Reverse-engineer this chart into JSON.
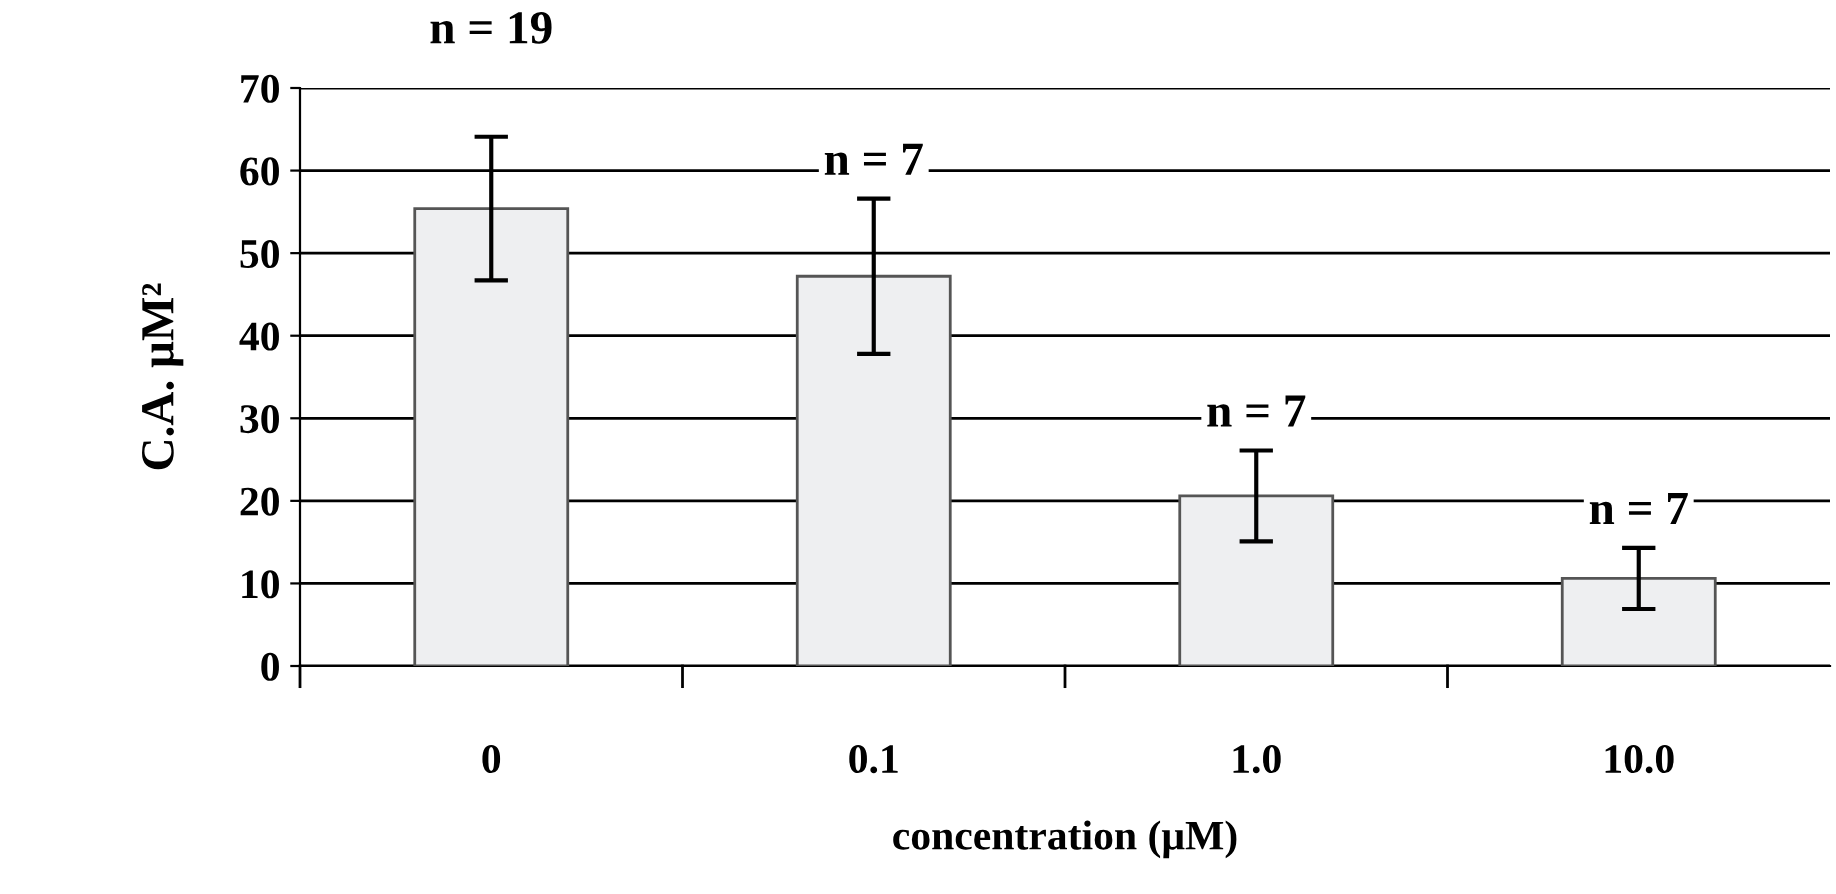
{
  "chart_data": {
    "type": "bar",
    "xlabel": "concentration (μM)",
    "ylabel": "C.A. μM²",
    "categories": [
      "0",
      "0.1",
      "1.0",
      "10.0"
    ],
    "values": [
      55.4,
      47.2,
      20.6,
      10.6
    ],
    "errors": [
      8.7,
      9.4,
      5.5,
      3.7
    ],
    "color": "#eeeff1",
    "ylim": [
      0,
      70
    ],
    "yticks": [
      0,
      10,
      20,
      30,
      40,
      50,
      60,
      70
    ],
    "grid": "y",
    "annotations": [
      "n = 19",
      "n = 7",
      "n = 7",
      "n = 7"
    ]
  }
}
